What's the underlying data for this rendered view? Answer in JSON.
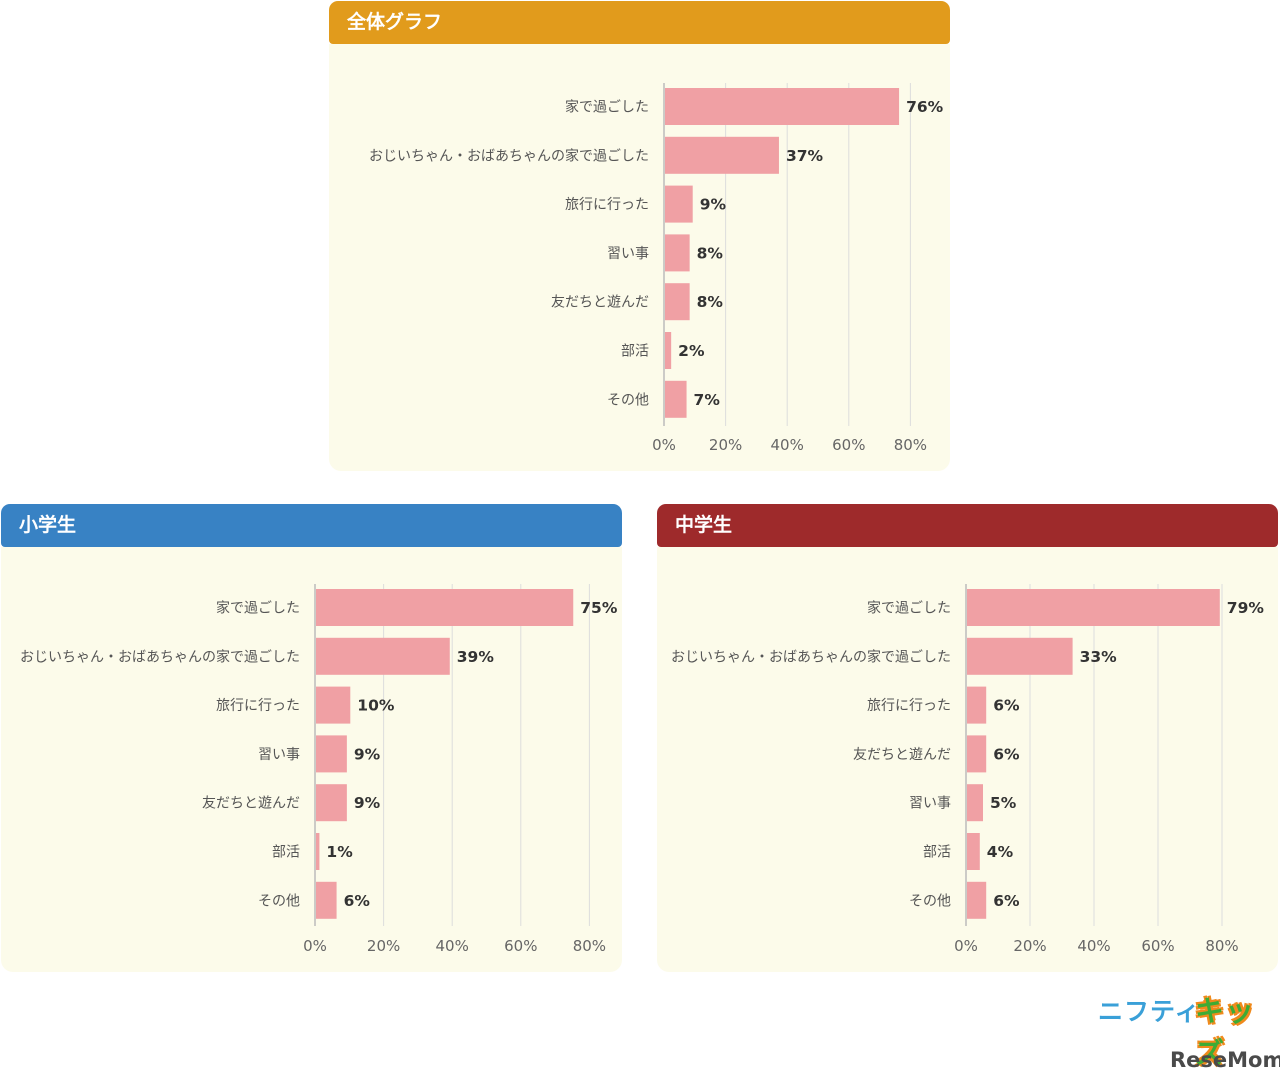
{
  "panels": [
    {
      "title": "全体グラフ",
      "header_color": "#e19b1c"
    },
    {
      "title": "小学生",
      "header_color": "#3882c4"
    },
    {
      "title": "中学生",
      "header_color": "#9e2a2b"
    }
  ],
  "chart_data": [
    {
      "type": "bar",
      "orientation": "horizontal",
      "title": "全体グラフ",
      "categories": [
        "家で過ごした",
        "おじいちゃん・おばあちゃんの家で過ごした",
        "旅行に行った",
        "習い事",
        "友だちと遊んだ",
        "部活",
        "その他"
      ],
      "values": [
        76,
        37,
        9,
        8,
        8,
        2,
        7
      ],
      "value_labels": [
        "76%",
        "37%",
        "9%",
        "8%",
        "8%",
        "2%",
        "7%"
      ],
      "x_ticks": [
        "0%",
        "20%",
        "40%",
        "60%",
        "80%"
      ],
      "xlim": [
        0,
        80
      ],
      "grid": true,
      "bar_color": "#f0a0a4"
    },
    {
      "type": "bar",
      "orientation": "horizontal",
      "title": "小学生",
      "categories": [
        "家で過ごした",
        "おじいちゃん・おばあちゃんの家で過ごした",
        "旅行に行った",
        "習い事",
        "友だちと遊んだ",
        "部活",
        "その他"
      ],
      "values": [
        75,
        39,
        10,
        9,
        9,
        1,
        6
      ],
      "value_labels": [
        "75%",
        "39%",
        "10%",
        "9%",
        "9%",
        "1%",
        "6%"
      ],
      "x_ticks": [
        "0%",
        "20%",
        "40%",
        "60%",
        "80%"
      ],
      "xlim": [
        0,
        80
      ],
      "grid": true,
      "bar_color": "#f0a0a4"
    },
    {
      "type": "bar",
      "orientation": "horizontal",
      "title": "中学生",
      "categories": [
        "家で過ごした",
        "おじいちゃん・おばあちゃんの家で過ごした",
        "旅行に行った",
        "友だちと遊んだ",
        "習い事",
        "部活",
        "その他"
      ],
      "values": [
        79,
        33,
        6,
        6,
        5,
        4,
        6
      ],
      "value_labels": [
        "79%",
        "33%",
        "6%",
        "6%",
        "5%",
        "4%",
        "6%"
      ],
      "x_ticks": [
        "0%",
        "20%",
        "40%",
        "60%",
        "80%"
      ],
      "xlim": [
        0,
        80
      ],
      "grid": true,
      "bar_color": "#f0a0a4"
    }
  ],
  "logos": {
    "nifty": "ニフティ",
    "kids": "キッズ",
    "resemom": "ReseMom"
  }
}
